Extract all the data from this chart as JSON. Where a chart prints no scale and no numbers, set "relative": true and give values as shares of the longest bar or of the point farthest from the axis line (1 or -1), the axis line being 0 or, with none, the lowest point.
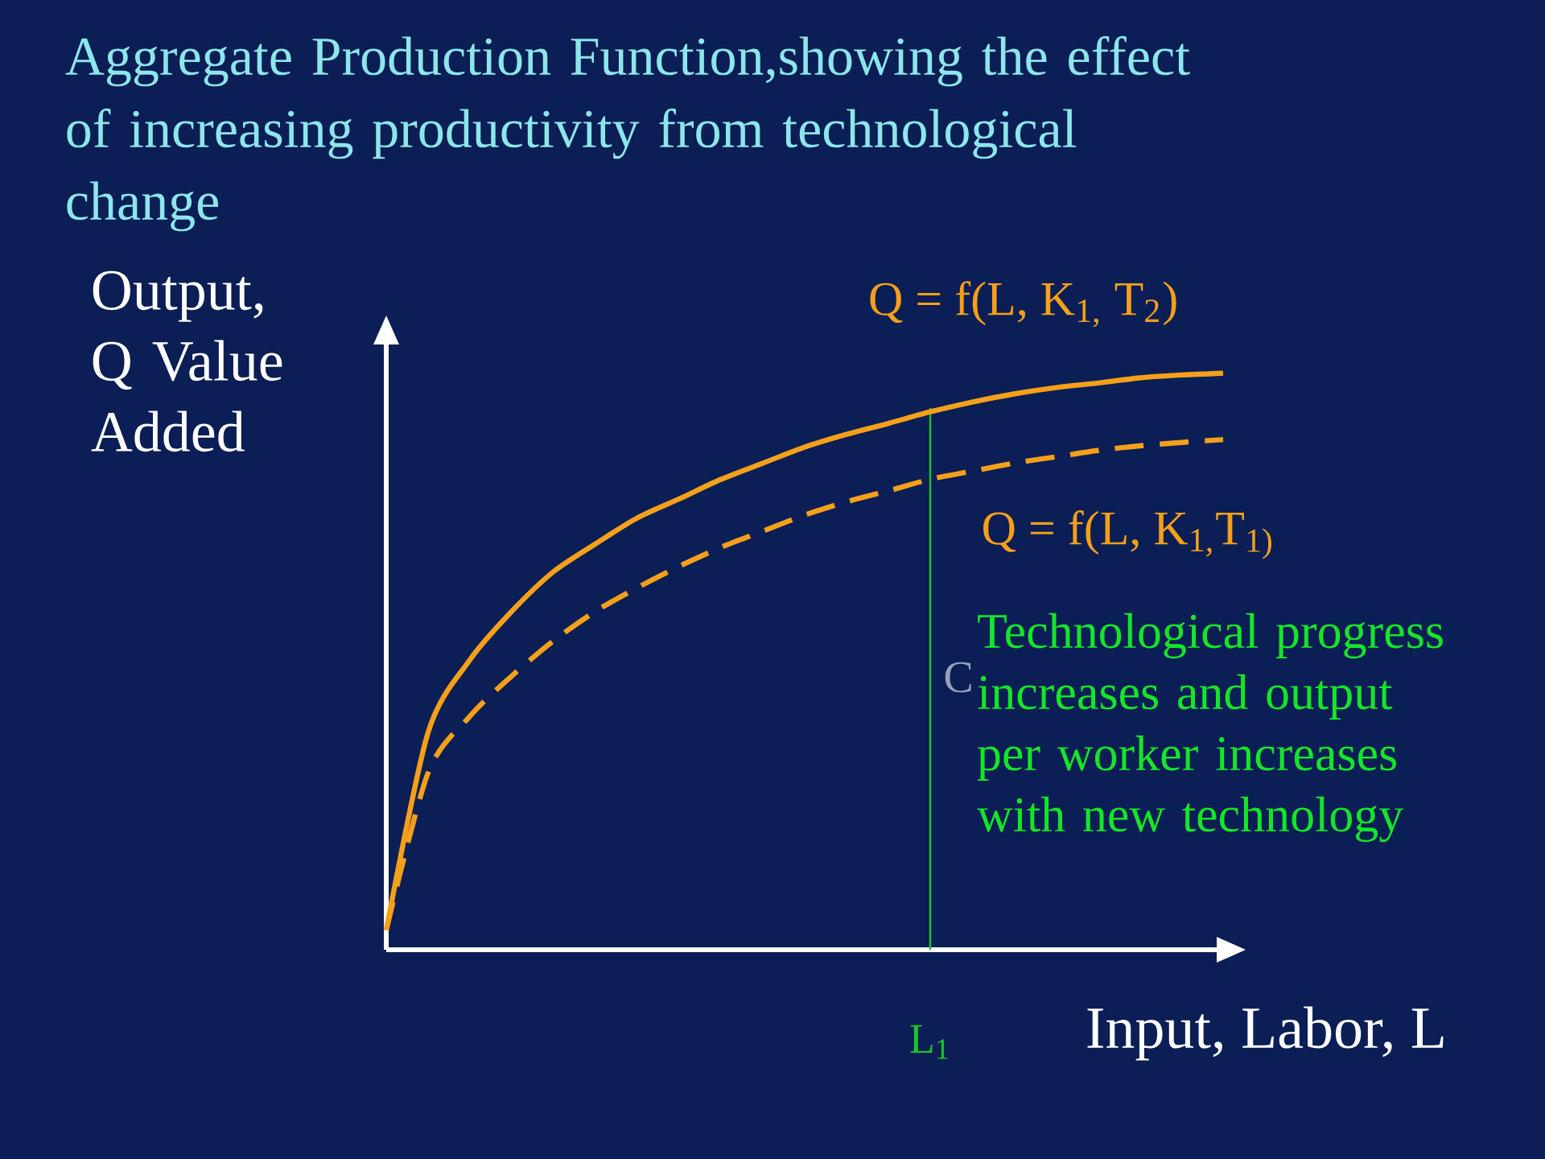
{
  "chart_data": {
    "type": "line",
    "relative": true,
    "title": "Aggregate Production Function,showing the effect of increasing productivity from technological change",
    "xlabel": "Input, Labor, L",
    "ylabel": "Output, Q Value Added",
    "categories": [
      null,
      null,
      null,
      null,
      null,
      null,
      null,
      null,
      null,
      null,
      null,
      null,
      null,
      null,
      null,
      null,
      null,
      null,
      null,
      null,
      null
    ],
    "series": [
      {
        "name": "Q = f(L, K$_{1,}$ T$_{2}$)",
        "color": "#f5a01a",
        "line_style": "solid",
        "values": [
          0.034,
          0.377,
          0.503,
          0.587,
          0.656,
          0.704,
          0.749,
          0.782,
          0.816,
          0.844,
          0.872,
          0.894,
          0.913,
          0.933,
          0.95,
          0.964,
          0.975,
          0.983,
          0.992,
          0.997,
          1
        ]
      },
      {
        "name": "Q = f(L, K$_{1,}$T$_{1)}$",
        "color": "#f5a01a",
        "line_style": "dashed",
        "values": [
          0.034,
          0.307,
          0.405,
          0.475,
          0.536,
          0.587,
          0.628,
          0.665,
          0.698,
          0.726,
          0.754,
          0.777,
          0.796,
          0.816,
          0.83,
          0.844,
          0.855,
          0.866,
          0.874,
          0.88,
          0.885
        ]
      }
    ],
    "annotations": [
      "Technological progress increases and output per worker increases with new technology",
      "C",
      "L$_{1}$"
    ],
    "marker": "none"
  }
}
